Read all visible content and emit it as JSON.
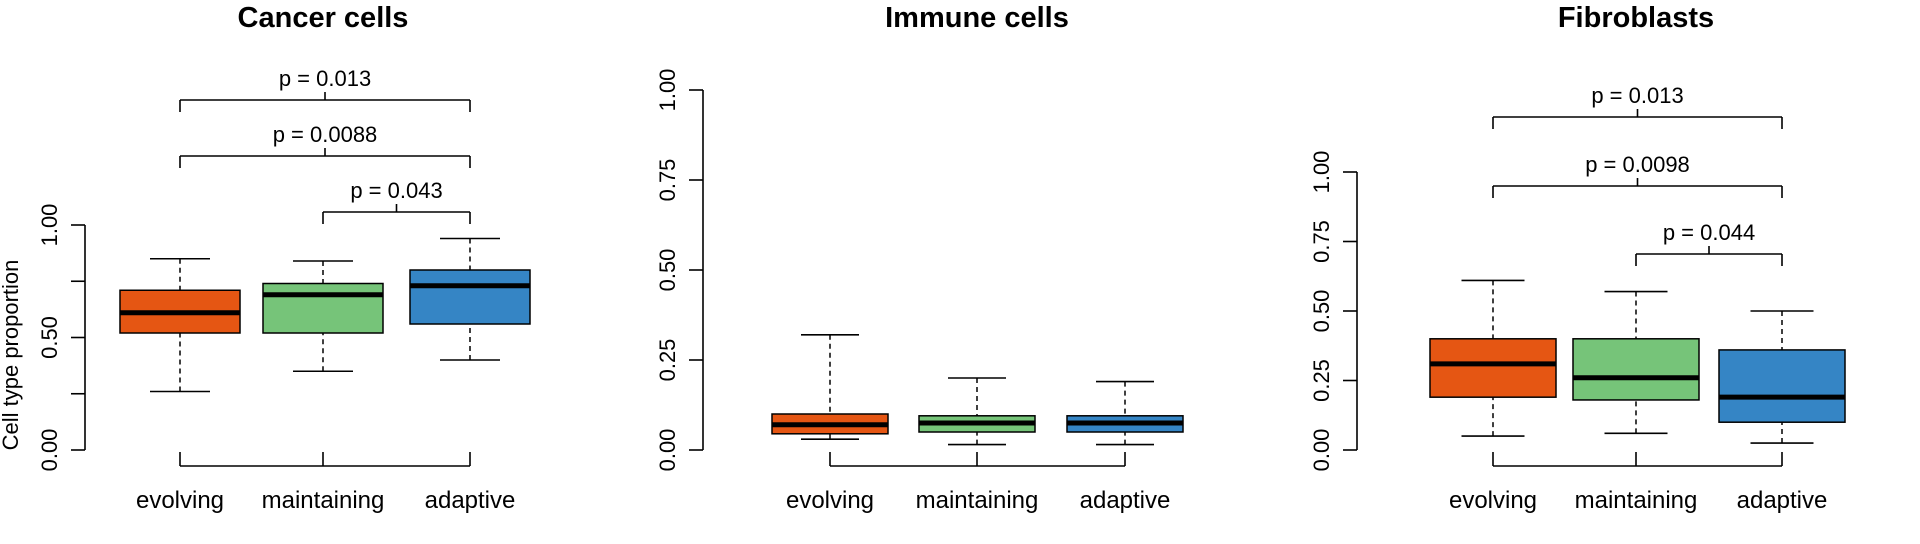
{
  "figure": {
    "ylabel": "Cell type proportion",
    "ticks": [
      "0.00",
      "0.25",
      "0.50",
      "0.75",
      "1.00"
    ],
    "colors": {
      "evolving": "#E55613",
      "maintaining": "#76C479",
      "adaptive": "#3585C5"
    }
  },
  "chart_data": [
    {
      "type": "boxplot",
      "title": "Cancer cells",
      "ylabel": "Cell type proportion",
      "ylim": [
        0,
        1
      ],
      "y_ticks": [
        0,
        0.25,
        0.5,
        0.75,
        1
      ],
      "y_tick_labels": [
        "0.00",
        "",
        "0.50",
        "",
        "1.00"
      ],
      "categories": [
        "evolving",
        "maintaining",
        "adaptive"
      ],
      "boxes": [
        {
          "name": "evolving",
          "min": 0.26,
          "q1": 0.52,
          "median": 0.61,
          "q3": 0.71,
          "max": 0.85
        },
        {
          "name": "maintaining",
          "min": 0.35,
          "q1": 0.52,
          "median": 0.69,
          "q3": 0.74,
          "max": 0.84
        },
        {
          "name": "adaptive",
          "min": 0.4,
          "q1": 0.56,
          "median": 0.73,
          "q3": 0.8,
          "max": 0.94
        }
      ],
      "comparisons": [
        {
          "from": "evolving",
          "to": "adaptive",
          "label": "p = 0.013"
        },
        {
          "from": "evolving",
          "to": "adaptive",
          "label": "p = 0.0088"
        },
        {
          "from": "maintaining",
          "to": "adaptive",
          "label": "p = 0.043"
        }
      ]
    },
    {
      "type": "boxplot",
      "title": "Immune cells",
      "ylabel": "",
      "ylim": [
        0,
        1
      ],
      "y_ticks": [
        0,
        0.25,
        0.5,
        0.75,
        1
      ],
      "y_tick_labels": [
        "0.00",
        "0.25",
        "0.50",
        "0.75",
        "1.00"
      ],
      "categories": [
        "evolving",
        "maintaining",
        "adaptive"
      ],
      "boxes": [
        {
          "name": "evolving",
          "min": 0.03,
          "q1": 0.045,
          "median": 0.07,
          "q3": 0.1,
          "max": 0.32
        },
        {
          "name": "maintaining",
          "min": 0.015,
          "q1": 0.05,
          "median": 0.075,
          "q3": 0.095,
          "max": 0.2
        },
        {
          "name": "adaptive",
          "min": 0.015,
          "q1": 0.05,
          "median": 0.075,
          "q3": 0.095,
          "max": 0.19
        }
      ],
      "comparisons": []
    },
    {
      "type": "boxplot",
      "title": "Fibroblasts",
      "ylabel": "",
      "ylim": [
        0,
        1
      ],
      "y_ticks": [
        0,
        0.25,
        0.5,
        0.75,
        1
      ],
      "y_tick_labels": [
        "0.00",
        "0.25",
        "0.50",
        "0.75",
        "1.00"
      ],
      "categories": [
        "evolving",
        "maintaining",
        "adaptive"
      ],
      "boxes": [
        {
          "name": "evolving",
          "min": 0.05,
          "q1": 0.19,
          "median": 0.31,
          "q3": 0.4,
          "max": 0.61
        },
        {
          "name": "maintaining",
          "min": 0.06,
          "q1": 0.18,
          "median": 0.26,
          "q3": 0.4,
          "max": 0.57
        },
        {
          "name": "adaptive",
          "min": 0.025,
          "q1": 0.1,
          "median": 0.19,
          "q3": 0.36,
          "max": 0.5
        }
      ],
      "comparisons": [
        {
          "from": "evolving",
          "to": "adaptive",
          "label": "p = 0.013"
        },
        {
          "from": "evolving",
          "to": "adaptive",
          "label": "p = 0.0098"
        },
        {
          "from": "maintaining",
          "to": "adaptive",
          "label": "p = 0.044"
        }
      ]
    }
  ]
}
